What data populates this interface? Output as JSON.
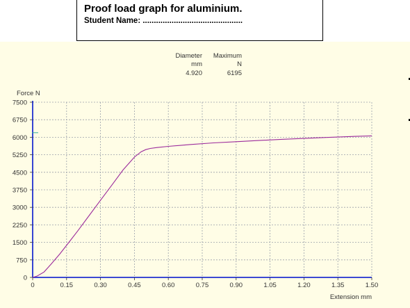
{
  "header": {
    "title": "Proof load graph for aluminium.",
    "student_label": "Student Name: ............................................."
  },
  "summary_table": {
    "columns": [
      {
        "header": "Diameter",
        "unit": "mm",
        "value": "4.920"
      },
      {
        "header": "Maximum",
        "unit": "N",
        "value": "6195"
      }
    ]
  },
  "chart_data": {
    "type": "line",
    "ylabel": "Force N",
    "xlabel": "Extension mm",
    "xlim": [
      0,
      1.5
    ],
    "ylim": [
      0,
      7500
    ],
    "x_ticks": [
      "0",
      "0.15",
      "0.30",
      "0.45",
      "0.60",
      "0.75",
      "0.90",
      "1.05",
      "1.20",
      "1.35",
      "1.50"
    ],
    "y_ticks": [
      "0",
      "750",
      "1500",
      "2250",
      "3000",
      "3750",
      "4500",
      "5250",
      "6000",
      "6750",
      "7500"
    ],
    "grid": true,
    "line_color": "#9b2a9b",
    "axis_color": "#1f2fd0",
    "background": "#fffde6",
    "series": [
      {
        "x": [
          0,
          0.02,
          0.05,
          0.08,
          0.12,
          0.16,
          0.2,
          0.25,
          0.3,
          0.35,
          0.4,
          0.45,
          0.48,
          0.5,
          0.52,
          0.55,
          0.6,
          0.7,
          0.8,
          0.9,
          1.0,
          1.1,
          1.2,
          1.3,
          1.4,
          1.5
        ],
        "y": [
          0,
          60,
          230,
          550,
          1000,
          1500,
          2000,
          2650,
          3300,
          3950,
          4600,
          5150,
          5380,
          5470,
          5520,
          5560,
          5610,
          5690,
          5760,
          5810,
          5860,
          5910,
          5950,
          5990,
          6030,
          6060
        ]
      }
    ]
  }
}
